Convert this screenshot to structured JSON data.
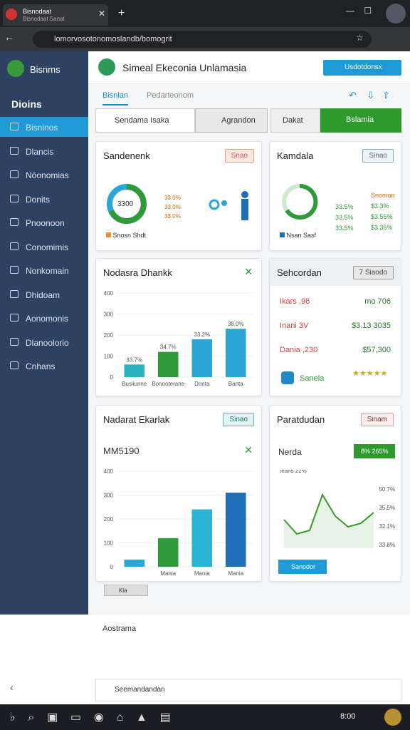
{
  "browser": {
    "tab_title": "Bisnodaat",
    "tab_subtitle": "Bisnodaat Sanat",
    "url": "lomorvosotonomoslandb/bomogrit"
  },
  "sidebar": {
    "brand": "Bisnms",
    "heading": "Dioins",
    "items": [
      "Bisninos",
      "Dlancis",
      "Nöonomias",
      "Donits",
      "Pnoonoon",
      "Conomimis",
      "Nonkomain",
      "Dhidoam",
      "Aonomonis",
      "Dlanoolorio",
      "Cnhans"
    ]
  },
  "header": {
    "title": "Simeal Ekeconia Unlamasia",
    "button": "Usdotdonsx"
  },
  "tabs": [
    "Bisnlan",
    "Pedarteonom"
  ],
  "toolbar": {
    "search": "Sendama Isaka",
    "button1": "Agrandon",
    "button2": "Dakat",
    "button3": "Bslamia"
  },
  "card1": {
    "title": "Sandenenk",
    "badge": "Snao",
    "center": "3300",
    "labels": [
      "33.0%",
      "33.0%",
      "33.0%"
    ],
    "legend": "Snosn Shdt"
  },
  "card2": {
    "title": "Kamdala",
    "badge": "Sinao",
    "col1": [
      "33.5%",
      "33.5%",
      "33.5%"
    ],
    "col2": [
      "Snomon",
      "$3.3%",
      "$3.55%",
      "$3.35%"
    ],
    "legend": "Nsan Sasf"
  },
  "card4": {
    "title": "Sehcordan",
    "badge": "7 Siaodo",
    "rows": [
      [
        "Ikars ,96",
        "mo 706"
      ],
      [
        "Inani 3V",
        "$3.13 3035"
      ],
      [
        "Dania ,230",
        "$57,300"
      ]
    ],
    "footer": "Sanela"
  },
  "card5": {
    "badge": "Sinao",
    "value": "MM5190",
    "chip": "Kia"
  },
  "card6": {
    "badge": "Sinam",
    "sub": "Nerda",
    "tag": "8% 265%",
    "button": "Sanodor"
  },
  "bottom": {
    "label": "Aostrama",
    "search": "Seemandandan"
  },
  "taskbar": {
    "time": "8:00"
  },
  "chart_data": [
    {
      "type": "bar",
      "title": "Nodasra Dhankk",
      "categories": [
        "Busiiunne",
        "Bonooterane",
        "Donta",
        "Banta"
      ],
      "values": [
        60,
        120,
        180,
        230
      ],
      "colors": [
        "#2bb3c0",
        "#2e9a3a",
        "#2aa7d6",
        "#2aa7d6"
      ],
      "annotations": [
        "33.7%",
        "34.7%",
        "33.2%",
        "38.0%"
      ],
      "ylim": [
        0,
        400
      ],
      "yticks": [
        0,
        100,
        200,
        300,
        400
      ]
    },
    {
      "type": "bar",
      "title": "Nadarat Ekarlak",
      "categories": [
        null,
        "Mania",
        "Mania",
        "Mania"
      ],
      "values": [
        30,
        120,
        240,
        310
      ],
      "colors": [
        "#2aa7d6",
        "#2e9a3a",
        "#2bb3d6",
        "#1f6fb8"
      ],
      "ylim": [
        0,
        400
      ],
      "yticks": [
        0,
        100,
        200,
        300,
        400
      ]
    },
    {
      "type": "line",
      "title": "Paratdudan",
      "x": [
        1,
        2,
        3,
        4,
        5,
        6,
        7,
        8
      ],
      "values": [
        40,
        20,
        25,
        75,
        45,
        30,
        35,
        50
      ],
      "color": "#3a9a2a",
      "xlim": [
        1,
        8
      ],
      "ylim": [
        0,
        100
      ],
      "annotations": [
        "fearis 22%",
        "50.7%",
        "35.5%",
        "32.1%",
        "33.8%"
      ]
    }
  ]
}
